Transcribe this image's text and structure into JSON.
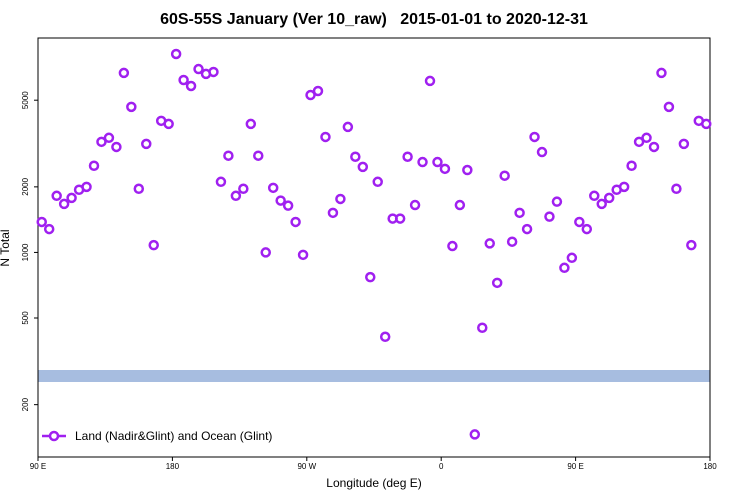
{
  "chart_data": {
    "type": "scatter",
    "title": "60S-55S January (Ver 10_raw)   2015-01-01 to 2020-12-31",
    "xlabel": "Longitude (deg E)",
    "ylabel": "N Total",
    "x": [
      92.5,
      97.5,
      102.5,
      107.5,
      112.5,
      117.5,
      122.5,
      127.5,
      132.5,
      137.5,
      142.5,
      147.5,
      152.5,
      157.5,
      162.5,
      167.5,
      172.5,
      177.5,
      182.5,
      187.5,
      192.5,
      197.5,
      202.5,
      207.5,
      212.5,
      217.5,
      222.5,
      227.5,
      232.5,
      237.5,
      242.5,
      247.5,
      252.5,
      257.5,
      262.5,
      267.5,
      272.5,
      277.5,
      282.5,
      287.5,
      292.5,
      297.5,
      302.5,
      307.5,
      312.5,
      317.5,
      322.5,
      327.5,
      332.5,
      337.5,
      342.5,
      347.5,
      352.5,
      357.5,
      362.5,
      367.5,
      372.5,
      377.5,
      382.5,
      387.5,
      392.5,
      397.5,
      402.5,
      407.5,
      412.5,
      417.5,
      422.5,
      427.5,
      432.5,
      437.5,
      442.5,
      447.5,
      452.5,
      457.5,
      462.5,
      467.5,
      472.5,
      477.5,
      482.5,
      487.5,
      492.5,
      497.5,
      502.5,
      507.5,
      512.5,
      517.5,
      522.5,
      527.5,
      532.5,
      537.5
    ],
    "series": [
      {
        "name": "Land (Nadir&Glint) and Ocean (Glint)",
        "color": "#a020f0",
        "values": [
          1380,
          1280,
          1820,
          1670,
          1780,
          1940,
          2000,
          2500,
          3220,
          3360,
          3050,
          6670,
          4660,
          1960,
          3150,
          1080,
          4020,
          3890,
          8150,
          6190,
          5810,
          6950,
          6600,
          6740,
          2110,
          2780,
          1820,
          1960,
          3890,
          2780,
          1000,
          1980,
          1730,
          1640,
          1380,
          975,
          5280,
          5510,
          3390,
          1520,
          1760,
          3770,
          2750,
          2470,
          770,
          2110,
          410,
          1430,
          1430,
          2750,
          1650,
          2600,
          6130,
          2600,
          2420,
          1070,
          1650,
          2390,
          146,
          451,
          1100,
          725,
          2250,
          1120,
          1520,
          1280,
          3390,
          2890,
          1460,
          1710,
          850,
          945,
          1380,
          1280,
          1820,
          1670,
          1780,
          1940,
          2000,
          2500,
          3220,
          3360,
          3050,
          6670,
          4660,
          1960,
          3150,
          1080,
          4020,
          3890
        ]
      }
    ],
    "xlim": [
      90,
      540
    ],
    "xticks": [
      {
        "value": 90,
        "label": "90 E"
      },
      180,
      {
        "value": 270,
        "label": "90 W"
      },
      {
        "value": 360,
        "label": "0"
      },
      {
        "value": 450,
        "label": "90 E"
      },
      {
        "value": 540,
        "label": "180"
      }
    ],
    "ylim": [
      115,
      9650
    ],
    "log_y": true,
    "yticks": [
      200,
      500,
      1000,
      2000,
      5000
    ],
    "legend": "bottom-left"
  }
}
